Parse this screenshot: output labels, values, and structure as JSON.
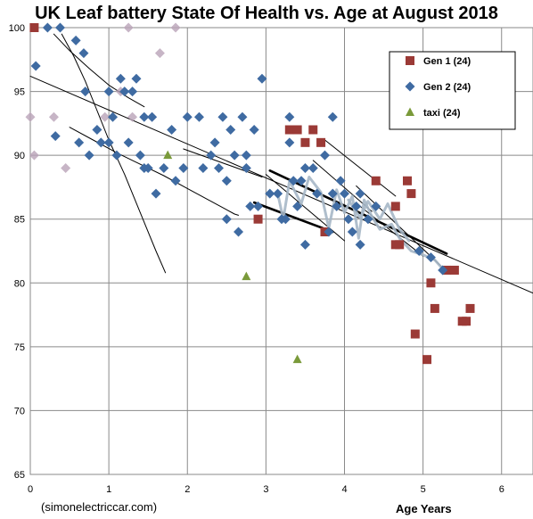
{
  "chart_data": {
    "type": "scatter",
    "title": "UK Leaf battery State Of Health vs. Age at August 2018",
    "xlabel": "Age Years",
    "ylabel": "",
    "credit": "(simonelectriccar.com)",
    "xlim": [
      0,
      6.4
    ],
    "ylim": [
      65,
      100
    ],
    "xticks": [
      0,
      1,
      2,
      3,
      4,
      5,
      6
    ],
    "yticks": [
      65,
      70,
      75,
      80,
      85,
      90,
      95,
      100
    ],
    "grid": true,
    "legend_position": "top-right",
    "series": [
      {
        "name": "Gen 1 (24)",
        "color": "#9b3a36",
        "marker": "square",
        "points": [
          [
            0.05,
            100
          ],
          [
            2.9,
            85
          ],
          [
            3.3,
            92
          ],
          [
            3.4,
            92
          ],
          [
            3.5,
            91
          ],
          [
            3.6,
            92
          ],
          [
            3.7,
            91
          ],
          [
            3.75,
            84
          ],
          [
            4.4,
            88
          ],
          [
            4.65,
            86
          ],
          [
            4.65,
            83
          ],
          [
            4.7,
            83
          ],
          [
            4.8,
            88
          ],
          [
            4.85,
            87
          ],
          [
            4.9,
            76
          ],
          [
            5.05,
            74
          ],
          [
            5.1,
            80
          ],
          [
            5.15,
            78
          ],
          [
            5.3,
            81
          ],
          [
            5.4,
            81
          ],
          [
            5.5,
            77
          ],
          [
            5.55,
            77
          ],
          [
            5.6,
            78
          ]
        ]
      },
      {
        "name": "Gen 2 (24)",
        "color": "#3f6ba2",
        "marker": "diamond",
        "points": [
          [
            0.07,
            97
          ],
          [
            0.22,
            100
          ],
          [
            0.38,
            100
          ],
          [
            0.32,
            91.5
          ],
          [
            0.58,
            99
          ],
          [
            0.62,
            91
          ],
          [
            0.68,
            98
          ],
          [
            0.7,
            95
          ],
          [
            0.75,
            90
          ],
          [
            0.85,
            92
          ],
          [
            0.9,
            91
          ],
          [
            1.0,
            95
          ],
          [
            1.0,
            91
          ],
          [
            1.05,
            93
          ],
          [
            1.1,
            90
          ],
          [
            1.15,
            96
          ],
          [
            1.2,
            95
          ],
          [
            1.25,
            91
          ],
          [
            1.3,
            95
          ],
          [
            1.35,
            96
          ],
          [
            1.4,
            90
          ],
          [
            1.45,
            89
          ],
          [
            1.45,
            93
          ],
          [
            1.5,
            89
          ],
          [
            1.55,
            93
          ],
          [
            1.6,
            87
          ],
          [
            1.7,
            89
          ],
          [
            1.8,
            92
          ],
          [
            1.85,
            88
          ],
          [
            1.95,
            89
          ],
          [
            2.0,
            93
          ],
          [
            2.15,
            93
          ],
          [
            2.2,
            89
          ],
          [
            2.3,
            90
          ],
          [
            2.35,
            91
          ],
          [
            2.4,
            89
          ],
          [
            2.45,
            93
          ],
          [
            2.5,
            85
          ],
          [
            2.5,
            88
          ],
          [
            2.55,
            92
          ],
          [
            2.6,
            90
          ],
          [
            2.65,
            84
          ],
          [
            2.7,
            93
          ],
          [
            2.75,
            89
          ],
          [
            2.75,
            90
          ],
          [
            2.8,
            86
          ],
          [
            2.85,
            92
          ],
          [
            2.9,
            86
          ],
          [
            2.95,
            96
          ],
          [
            3.05,
            87
          ],
          [
            3.15,
            87
          ],
          [
            3.2,
            85
          ],
          [
            3.25,
            85
          ],
          [
            3.3,
            91
          ],
          [
            3.3,
            93
          ],
          [
            3.35,
            88
          ],
          [
            3.4,
            86
          ],
          [
            3.45,
            88
          ],
          [
            3.5,
            89
          ],
          [
            3.5,
            83
          ],
          [
            3.6,
            89
          ],
          [
            3.65,
            87
          ],
          [
            3.75,
            90
          ],
          [
            3.8,
            84
          ],
          [
            3.85,
            93
          ],
          [
            3.85,
            87
          ],
          [
            3.9,
            86
          ],
          [
            3.95,
            88
          ],
          [
            4.0,
            87
          ],
          [
            4.05,
            85
          ],
          [
            4.1,
            84
          ],
          [
            4.15,
            86
          ],
          [
            4.2,
            87
          ],
          [
            4.2,
            83
          ],
          [
            4.3,
            85
          ],
          [
            4.4,
            86
          ],
          [
            4.95,
            82.5
          ],
          [
            5.1,
            82
          ],
          [
            5.25,
            81
          ]
        ]
      },
      {
        "name": "taxi (24)",
        "color": "#7a9a3a",
        "marker": "triangle",
        "points": [
          [
            1.75,
            90
          ],
          [
            2.75,
            80.5
          ],
          [
            3.4,
            74
          ]
        ]
      }
    ],
    "faded_points": [
      [
        0.0,
        93
      ],
      [
        0.05,
        90
      ],
      [
        0.3,
        93
      ],
      [
        0.45,
        89
      ],
      [
        0.95,
        93
      ],
      [
        1.15,
        95
      ],
      [
        1.3,
        93
      ],
      [
        1.55,
        93
      ],
      [
        1.65,
        98
      ],
      [
        1.85,
        100
      ],
      [
        1.25,
        100
      ]
    ],
    "trend_lines": [
      {
        "kind": "linear",
        "color": "#000000",
        "points": [
          [
            0.0,
            96.2
          ],
          [
            6.4,
            79.2
          ]
        ]
      },
      {
        "kind": "curve",
        "color": "#000000",
        "points": [
          [
            0.4,
            99.5
          ],
          [
            0.55,
            97.8
          ],
          [
            0.7,
            95.8
          ],
          [
            0.85,
            93.5
          ],
          [
            1.0,
            91.2
          ],
          [
            1.2,
            88.5
          ],
          [
            1.4,
            85.5
          ],
          [
            1.6,
            82.5
          ],
          [
            1.72,
            80.8
          ]
        ]
      },
      {
        "kind": "curve",
        "color": "#000000",
        "points": [
          [
            0.3,
            99.5
          ],
          [
            0.5,
            98.2
          ],
          [
            0.75,
            96.8
          ],
          [
            1.0,
            95.5
          ],
          [
            1.25,
            94.5
          ],
          [
            1.45,
            93.8
          ]
        ]
      },
      {
        "kind": "curve",
        "color": "#000000",
        "points": [
          [
            0.5,
            92.2
          ],
          [
            0.8,
            91.2
          ],
          [
            1.1,
            90.2
          ],
          [
            1.4,
            89.3
          ],
          [
            1.7,
            88.4
          ],
          [
            2.0,
            87.4
          ],
          [
            2.3,
            86.4
          ],
          [
            2.6,
            85.4
          ],
          [
            2.65,
            85.3
          ]
        ]
      },
      {
        "kind": "linear",
        "color": "#000000",
        "points": [
          [
            1.95,
            90.5
          ],
          [
            2.95,
            88.3
          ]
        ]
      },
      {
        "kind": "linear",
        "color": "#000000",
        "points": [
          [
            3.0,
            88.5
          ],
          [
            4.0,
            83.3
          ]
        ]
      },
      {
        "kind": "linear",
        "color": "#000000",
        "points": [
          [
            3.6,
            89.6
          ],
          [
            4.35,
            85.6
          ]
        ]
      },
      {
        "kind": "linear",
        "color": "#000000",
        "points": [
          [
            3.75,
            91.2
          ],
          [
            4.65,
            86.8
          ]
        ]
      },
      {
        "kind": "linear",
        "color": "#000000",
        "points": [
          [
            4.15,
            87.6
          ],
          [
            5.25,
            81.2
          ]
        ]
      },
      {
        "kind": "linear",
        "color": "#000000",
        "points": [
          [
            4.2,
            86
          ],
          [
            5.0,
            82.1
          ]
        ]
      },
      {
        "kind": "bold",
        "color": "#000000",
        "points": [
          [
            2.85,
            86.3
          ],
          [
            3.85,
            84
          ]
        ]
      },
      {
        "kind": "bold",
        "color": "#000000",
        "points": [
          [
            3.05,
            88.8
          ],
          [
            5.3,
            82.3
          ]
        ]
      },
      {
        "kind": "smooth",
        "color": "#a6b7c7",
        "points": [
          [
            3.15,
            87
          ],
          [
            3.22,
            85
          ],
          [
            3.3,
            88
          ],
          [
            3.45,
            86.2
          ],
          [
            3.55,
            88.3
          ],
          [
            3.7,
            87.1
          ],
          [
            3.8,
            84.3
          ],
          [
            3.9,
            87.3
          ],
          [
            4.0,
            85.5
          ],
          [
            4.1,
            86.8
          ],
          [
            4.18,
            83.5
          ],
          [
            4.25,
            86.5
          ],
          [
            4.35,
            85.2
          ],
          [
            4.45,
            84.2
          ],
          [
            4.6,
            84.6
          ],
          [
            4.7,
            83.5
          ],
          [
            4.85,
            82.5
          ],
          [
            5.0,
            82.2
          ],
          [
            5.15,
            81.8
          ],
          [
            5.25,
            81.1
          ]
        ]
      },
      {
        "kind": "smooth",
        "color": "#a6b7c7",
        "points": [
          [
            4.05,
            86.5
          ],
          [
            4.2,
            85.1
          ],
          [
            4.3,
            86.4
          ],
          [
            4.45,
            85
          ],
          [
            4.55,
            86.2
          ],
          [
            4.7,
            84.2
          ],
          [
            4.82,
            83.3
          ]
        ]
      }
    ]
  }
}
